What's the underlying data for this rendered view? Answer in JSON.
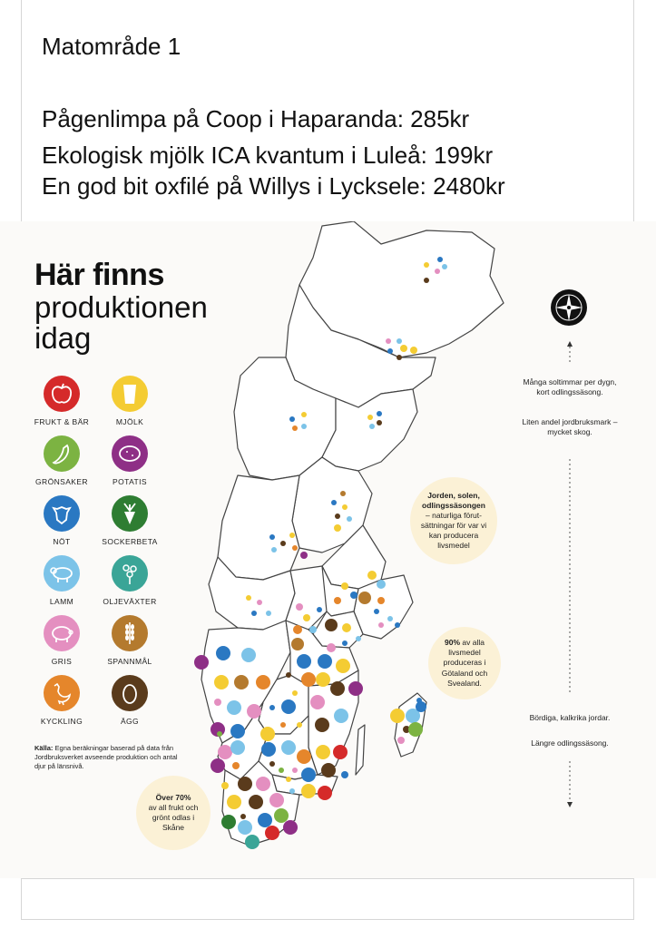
{
  "note": {
    "title": "Matområde 1",
    "lines": [
      "Pågenlimpa på Coop i Haparanda: 285kr",
      "Ekologisk mjölk ICA kvantum i Luleå: 199kr",
      "En god bit oxfilé på Willys i Lycksele: 2480kr"
    ]
  },
  "infographic": {
    "title_bold": "Här finns",
    "title_line2": "produktionen",
    "title_line3": "idag",
    "legend": [
      {
        "label": "FRUKT & BÄR",
        "icon": "apple-icon",
        "color": "#d52a2a"
      },
      {
        "label": "MJÖLK",
        "icon": "milk-glass-icon",
        "color": "#f4cc33"
      },
      {
        "label": "GRÖNSAKER",
        "icon": "pepper-icon",
        "color": "#7cb342"
      },
      {
        "label": "POTATIS",
        "icon": "potato-icon",
        "color": "#8e2f86"
      },
      {
        "label": "NÖT",
        "icon": "cow-icon",
        "color": "#2a78c2"
      },
      {
        "label": "SOCKERBETA",
        "icon": "sugar-beet-icon",
        "color": "#2e7d32"
      },
      {
        "label": "LAMM",
        "icon": "sheep-icon",
        "color": "#7cc3e8"
      },
      {
        "label": "OLJEVÄXTER",
        "icon": "oilseed-icon",
        "color": "#3aa597"
      },
      {
        "label": "GRIS",
        "icon": "pig-icon",
        "color": "#e48fc0"
      },
      {
        "label": "SPANNMÅL",
        "icon": "grain-icon",
        "color": "#b47a2e"
      },
      {
        "label": "KYCKLING",
        "icon": "chicken-icon",
        "color": "#e5862b"
      },
      {
        "label": "ÄGG",
        "icon": "egg-icon",
        "color": "#5a3b1c"
      }
    ],
    "source_bold": "Källa:",
    "source_text": "Egna beräkningar baserad på data från Jordbruksverket avseende produktion och antal djur på länsnivå.",
    "bubble_north": {
      "bold": "Jorden, solen, odlingssäsongen",
      "text": "– naturliga förut-sättningar för var vi kan producera livsmedel"
    },
    "bubble_middle": {
      "bold": "90%",
      "text": "av alla livsmedel produceras i Götaland och Svealand."
    },
    "bubble_south": {
      "bold": "Över 70%",
      "text": "av all frukt och grönt odlas i Skåne"
    },
    "scale_top": "Många soltimmar per dygn, kort odlingssäsong.",
    "scale_top2": "Liten andel jordbruksmark – mycket skog.",
    "scale_bottom": "Bördiga, kalkrika jordar.",
    "scale_bottom2": "Längre odlingssäsong.",
    "compass_icon": "compass-icon"
  }
}
